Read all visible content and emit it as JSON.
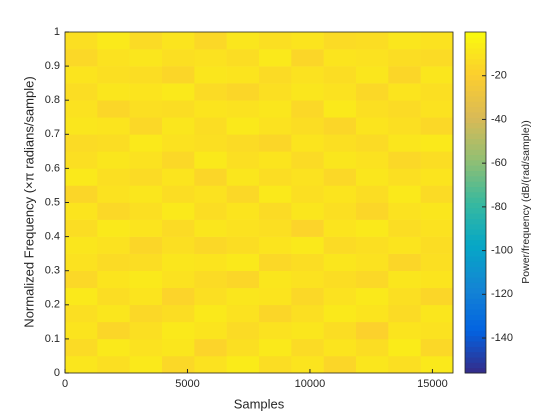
{
  "chart_data": {
    "type": "heatmap",
    "xlabel": "Samples",
    "ylabel": "Normalized Frequency  (×π radians/sample)",
    "colorbar_label": "Power/frequency (dB/(rad/sample))",
    "xlim": [
      0,
      15840
    ],
    "xticks": [
      0,
      5000,
      10000,
      15000
    ],
    "ylim": [
      0,
      1
    ],
    "yticks": [
      0,
      0.1,
      0.2,
      0.3,
      0.4,
      0.5,
      0.6,
      0.7,
      0.8,
      0.9,
      1
    ],
    "clim": [
      -156,
      0
    ],
    "cticks": [
      -140,
      -120,
      -100,
      -80,
      -60,
      -40,
      -20
    ],
    "colormap": [
      "#352a87",
      "#0363e1",
      "#1485d4",
      "#06a7c6",
      "#38b99e",
      "#92bf73",
      "#d9ba56",
      "#fcce2e",
      "#f9fb0e"
    ],
    "x": [
      660,
      1980,
      3300,
      4620,
      5940,
      7260,
      8580,
      9900,
      11220,
      12540,
      13860,
      15180
    ],
    "y": [
      0.025,
      0.075,
      0.125,
      0.175,
      0.225,
      0.275,
      0.325,
      0.375,
      0.425,
      0.475,
      0.525,
      0.575,
      0.625,
      0.675,
      0.725,
      0.775,
      0.825,
      0.875,
      0.925,
      0.975
    ],
    "values": [
      [
        -9,
        -12,
        -8,
        -15,
        -11,
        -7,
        -13,
        -10,
        -16,
        -9,
        -12,
        -8
      ],
      [
        -14,
        -8,
        -11,
        -9,
        -17,
        -12,
        -8,
        -14,
        -10,
        -13,
        -7,
        -15
      ],
      [
        -10,
        -16,
        -12,
        -8,
        -10,
        -14,
        -11,
        -9,
        -13,
        -18,
        -10,
        -11
      ],
      [
        -12,
        -9,
        -15,
        -13,
        -8,
        -11,
        -16,
        -12,
        -8,
        -10,
        -14,
        -9
      ],
      [
        -8,
        -13,
        -10,
        -17,
        -12,
        -9,
        -10,
        -15,
        -11,
        -8,
        -12,
        -16
      ],
      [
        -15,
        -10,
        -8,
        -11,
        -14,
        -16,
        -9,
        -11,
        -13,
        -15,
        -9,
        -10
      ],
      [
        -11,
        -14,
        -13,
        -9,
        -10,
        -8,
        -15,
        -13,
        -9,
        -11,
        -16,
        -12
      ],
      [
        -9,
        -11,
        -16,
        -12,
        -15,
        -13,
        -10,
        -8,
        -14,
        -12,
        -10,
        -13
      ],
      [
        -13,
        -8,
        -10,
        -14,
        -9,
        -11,
        -12,
        -17,
        -10,
        -8,
        -13,
        -11
      ],
      [
        -10,
        -15,
        -12,
        -8,
        -13,
        -10,
        -14,
        -9,
        -12,
        -16,
        -11,
        -9
      ],
      [
        -16,
        -11,
        -9,
        -13,
        -11,
        -15,
        -8,
        -12,
        -10,
        -13,
        -8,
        -14
      ],
      [
        -8,
        -12,
        -14,
        -10,
        -16,
        -9,
        -13,
        -11,
        -15,
        -9,
        -12,
        -10
      ],
      [
        -12,
        -9,
        -11,
        -15,
        -8,
        -12,
        -10,
        -14,
        -9,
        -11,
        -15,
        -13
      ],
      [
        -14,
        -13,
        -8,
        -11,
        -12,
        -14,
        -16,
        -10,
        -12,
        -14,
        -9,
        -8
      ],
      [
        -9,
        -10,
        -15,
        -9,
        -13,
        -8,
        -11,
        -13,
        -16,
        -10,
        -12,
        -15
      ],
      [
        -11,
        -16,
        -12,
        -13,
        -10,
        -11,
        -9,
        -15,
        -8,
        -12,
        -14,
        -11
      ],
      [
        -13,
        -9,
        -10,
        -8,
        -14,
        -16,
        -12,
        -9,
        -11,
        -15,
        -10,
        -12
      ],
      [
        -10,
        -12,
        -13,
        -16,
        -9,
        -10,
        -14,
        -11,
        -13,
        -9,
        -16,
        -9
      ],
      [
        -15,
        -11,
        -9,
        -12,
        -11,
        -13,
        -8,
        -16,
        -10,
        -11,
        -13,
        -14
      ],
      [
        -12,
        -8,
        -14,
        -10,
        -15,
        -9,
        -12,
        -10,
        -14,
        -13,
        -9,
        -11
      ]
    ]
  }
}
